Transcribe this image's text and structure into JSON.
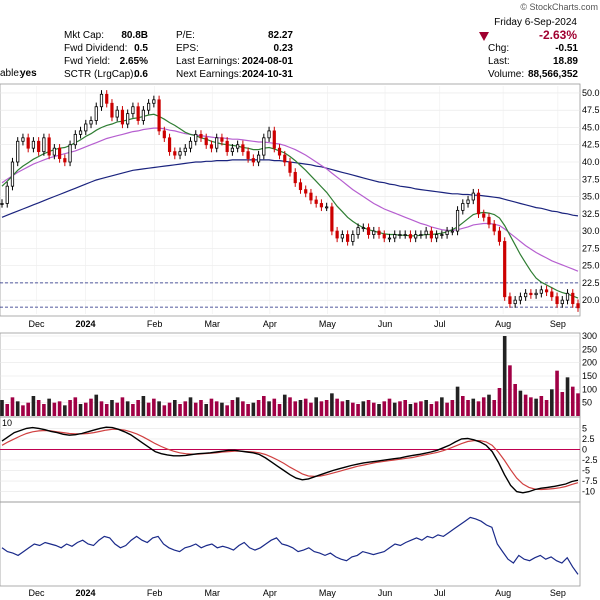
{
  "brand": "© StockCharts.com",
  "header": {
    "date_line": "Friday  6-Sep-2024",
    "change_pct": "-2.63%",
    "left_rows": [
      {
        "label": "Mkt Cap:",
        "value": "80.8B"
      },
      {
        "label": "Fwd Dividend:",
        "value": "0.5"
      },
      {
        "label": "Fwd Yield:",
        "value": "2.65%"
      },
      {
        "label": "SCTR (LrgCap):",
        "value": "0.6"
      }
    ],
    "cut_label": "able:",
    "cut_value": "yes",
    "mid_rows": [
      {
        "label": "P/E:",
        "value": "82.27"
      },
      {
        "label": "EPS:",
        "value": "0.23"
      },
      {
        "label": "Last Earnings:",
        "value": "2024-08-01"
      },
      {
        "label": "Next Earnings:",
        "value": "2024-10-31"
      }
    ],
    "right_rows": [
      {
        "label": "Chg:",
        "value": "-0.51"
      },
      {
        "label": "Last:",
        "value": "18.89"
      },
      {
        "label": "Volume:",
        "value": "88,566,352"
      }
    ]
  },
  "colors": {
    "up": "#000000",
    "down": "#cc0000",
    "sma_short": "#2e7d32",
    "sma_mid": "#b65fd0",
    "sma_long": "#1a237e",
    "volume": "#a00045",
    "macd_line": "#000000",
    "macd_signal": "#d04040",
    "rs_line": "#1a2a8a",
    "hline": "#1a237e",
    "zero": "#c00050",
    "neg_arrow": "#a00030"
  },
  "chart_data": {
    "type": "line",
    "x_labels": [
      "Dec",
      "2024",
      "Feb",
      "Mar",
      "Apr",
      "May",
      "Jun",
      "Jul",
      "Aug",
      "Sep"
    ],
    "x_label_bold": "2024",
    "price_panel": {
      "y_ticks": [
        "50.0",
        "47.5",
        "45.0",
        "42.5",
        "40.0",
        "37.5",
        "35.0",
        "32.5",
        "30.0",
        "27.5",
        "25.0",
        "22.5",
        "20.0"
      ],
      "ylim": [
        18.0,
        51.0
      ],
      "reference_lines": [
        22.5,
        19.0
      ],
      "last_close": 18.89,
      "closes": [
        34.0,
        36.5,
        40.0,
        43.0,
        43.5,
        42.0,
        43.0,
        41.5,
        43.5,
        41.0,
        42.0,
        40.5,
        40.0,
        42.5,
        44.0,
        44.5,
        45.5,
        46.0,
        48.0,
        49.8,
        48.5,
        46.5,
        47.5,
        45.5,
        47.0,
        48.0,
        46.0,
        47.5,
        48.5,
        49.0,
        44.5,
        43.5,
        41.5,
        41.0,
        41.5,
        42.0,
        43.0,
        44.0,
        43.5,
        42.5,
        42.0,
        43.5,
        43.0,
        41.5,
        42.0,
        42.5,
        41.5,
        40.5,
        40.0,
        41.0,
        43.5,
        44.5,
        42.0,
        41.0,
        40.0,
        38.5,
        37.0,
        36.0,
        35.5,
        34.5,
        34.0,
        33.5,
        33.5,
        30.0,
        29.0,
        29.5,
        28.5,
        29.5,
        30.5,
        30.5,
        29.5,
        30.0,
        29.5,
        29.0,
        29.0,
        29.5,
        29.5,
        29.5,
        29.0,
        29.5,
        29.5,
        30.0,
        29.0,
        29.5,
        29.5,
        30.0,
        30.0,
        33.0,
        34.0,
        34.5,
        35.5,
        32.5,
        32.0,
        31.0,
        30.0,
        28.5,
        20.5,
        19.5,
        20.0,
        20.5,
        21.0,
        20.8,
        21.0,
        21.5,
        21.2,
        20.5,
        19.5,
        20.0,
        21.0,
        19.5,
        18.9
      ],
      "sma_short": [
        36.5,
        37.2,
        38.0,
        38.8,
        39.4,
        39.9,
        40.4,
        40.8,
        41.2,
        41.5,
        41.8,
        42.0,
        42.1,
        42.4,
        42.8,
        43.2,
        43.7,
        44.1,
        44.6,
        45.0,
        45.3,
        45.5,
        45.8,
        45.9,
        46.1,
        46.3,
        46.4,
        46.6,
        46.8,
        46.9,
        46.6,
        46.2,
        45.7,
        45.3,
        44.8,
        44.3,
        44.0,
        43.8,
        43.5,
        43.3,
        43.0,
        42.8,
        42.6,
        42.5,
        42.4,
        42.3,
        42.1,
        42.0,
        41.8,
        41.8,
        42.0,
        42.1,
        41.9,
        41.6,
        41.3,
        40.8,
        40.2,
        39.5,
        38.8,
        38.0,
        37.2,
        36.4,
        35.6,
        34.6,
        33.6,
        32.8,
        32.0,
        31.4,
        30.9,
        30.5,
        30.2,
        30.0,
        29.8,
        29.6,
        29.5,
        29.5,
        29.4,
        29.4,
        29.3,
        29.3,
        29.4,
        29.5,
        29.5,
        29.6,
        29.7,
        29.9,
        30.2,
        30.6,
        31.2,
        31.8,
        32.4,
        32.6,
        32.7,
        32.6,
        32.4,
        31.9,
        30.8,
        29.4,
        28.0,
        26.6,
        25.4,
        24.2,
        23.2,
        22.6,
        22.2,
        21.8,
        21.4,
        21.1,
        20.9,
        20.6,
        20.3
      ],
      "sma_mid": [
        37.0,
        37.5,
        38.0,
        38.5,
        38.9,
        39.3,
        39.7,
        40.0,
        40.3,
        40.6,
        40.8,
        41.0,
        41.2,
        41.4,
        41.6,
        41.9,
        42.2,
        42.5,
        42.8,
        43.1,
        43.4,
        43.6,
        43.8,
        44.0,
        44.2,
        44.4,
        44.5,
        44.7,
        44.8,
        44.9,
        44.9,
        44.8,
        44.6,
        44.5,
        44.3,
        44.1,
        44.0,
        43.9,
        43.8,
        43.7,
        43.6,
        43.5,
        43.5,
        43.4,
        43.3,
        43.3,
        43.2,
        43.1,
        43.0,
        42.9,
        42.9,
        42.8,
        42.7,
        42.6,
        42.4,
        42.1,
        41.8,
        41.4,
        41.0,
        40.5,
        40.0,
        39.5,
        39.0,
        38.4,
        37.8,
        37.2,
        36.6,
        36.0,
        35.5,
        35.0,
        34.5,
        34.0,
        33.6,
        33.2,
        32.9,
        32.6,
        32.3,
        32.0,
        31.7,
        31.4,
        31.1,
        30.9,
        30.6,
        30.4,
        30.2,
        30.1,
        30.1,
        30.2,
        30.4,
        30.6,
        30.9,
        31.0,
        31.1,
        31.1,
        31.0,
        30.8,
        30.3,
        29.7,
        29.1,
        28.5,
        27.9,
        27.4,
        26.9,
        26.5,
        26.1,
        25.7,
        25.4,
        25.1,
        24.8,
        24.5,
        24.2
      ],
      "sma_long": [
        32.0,
        32.3,
        32.6,
        32.9,
        33.2,
        33.5,
        33.8,
        34.1,
        34.4,
        34.7,
        35.0,
        35.3,
        35.6,
        35.9,
        36.2,
        36.5,
        36.8,
        37.1,
        37.4,
        37.6,
        37.8,
        38.0,
        38.2,
        38.4,
        38.6,
        38.8,
        38.9,
        39.0,
        39.1,
        39.2,
        39.3,
        39.4,
        39.5,
        39.6,
        39.7,
        39.8,
        39.9,
        40.0,
        40.0,
        40.1,
        40.1,
        40.2,
        40.2,
        40.2,
        40.3,
        40.3,
        40.3,
        40.3,
        40.3,
        40.3,
        40.3,
        40.3,
        40.2,
        40.2,
        40.1,
        40.0,
        39.9,
        39.8,
        39.7,
        39.6,
        39.4,
        39.3,
        39.1,
        38.9,
        38.7,
        38.5,
        38.3,
        38.1,
        37.9,
        37.7,
        37.5,
        37.3,
        37.1,
        37.0,
        36.8,
        36.7,
        36.5,
        36.4,
        36.3,
        36.1,
        36.0,
        35.9,
        35.8,
        35.7,
        35.6,
        35.5,
        35.4,
        35.4,
        35.3,
        35.3,
        35.2,
        35.2,
        35.1,
        35.0,
        34.9,
        34.8,
        34.6,
        34.4,
        34.2,
        34.0,
        33.8,
        33.6,
        33.4,
        33.3,
        33.1,
        32.9,
        32.8,
        32.6,
        32.5,
        32.3,
        32.2
      ]
    },
    "volume_panel": {
      "y_ticks": [
        "300",
        "250",
        "200",
        "150",
        "100",
        "50"
      ],
      "ylim": [
        0,
        300
      ],
      "values": [
        60,
        45,
        70,
        55,
        40,
        50,
        75,
        60,
        45,
        65,
        50,
        55,
        40,
        60,
        70,
        45,
        50,
        65,
        80,
        55,
        45,
        60,
        50,
        70,
        55,
        45,
        60,
        75,
        50,
        65,
        55,
        40,
        50,
        60,
        45,
        55,
        70,
        50,
        60,
        45,
        65,
        55,
        50,
        40,
        60,
        70,
        55,
        45,
        50,
        60,
        75,
        55,
        65,
        45,
        80,
        70,
        55,
        60,
        65,
        50,
        70,
        55,
        60,
        85,
        65,
        55,
        60,
        50,
        45,
        55,
        60,
        50,
        45,
        55,
        65,
        50,
        55,
        60,
        45,
        50,
        55,
        60,
        45,
        55,
        70,
        50,
        60,
        110,
        75,
        60,
        65,
        55,
        70,
        80,
        60,
        105,
        300,
        190,
        120,
        95,
        80,
        70,
        65,
        75,
        60,
        100,
        170,
        90,
        145,
        110,
        85
      ]
    },
    "macd_panel": {
      "y_ticks": [
        "5",
        "2.5",
        "0",
        "-2.5",
        "-5",
        "-7.5",
        "-10"
      ],
      "ylim": [
        -12,
        7
      ],
      "top_label_fragment": "10",
      "macd": [
        2,
        3,
        4,
        4.5,
        5,
        5.2,
        5.0,
        4.7,
        4.3,
        4.0,
        3.6,
        3.4,
        3.5,
        3.8,
        4.2,
        4.6,
        5.0,
        5.3,
        5.2,
        4.8,
        4.2,
        3.5,
        2.5,
        1.5,
        0.5,
        -0.5,
        -1.0,
        -1.3,
        -1.5,
        -1.5,
        -1.4,
        -1.2,
        -1.0,
        -0.9,
        -0.8,
        -0.6,
        -0.4,
        -0.2,
        -0.2,
        -0.4,
        -0.6,
        -0.8,
        -1.2,
        -2.0,
        -3.0,
        -4.0,
        -5.0,
        -6.0,
        -6.8,
        -7.2,
        -7.0,
        -6.5,
        -6.0,
        -5.5,
        -5.0,
        -4.6,
        -4.2,
        -3.8,
        -3.5,
        -3.2,
        -3.0,
        -2.8,
        -2.6,
        -2.4,
        -2.2,
        -2.0,
        -1.7,
        -1.4,
        -1.2,
        -0.9,
        -0.6,
        -0.2,
        0.4,
        1.0,
        1.8,
        2.5,
        2.6,
        2.3,
        1.8,
        1.0,
        -0.5,
        -3.0,
        -6.0,
        -8.5,
        -10.0,
        -10.3,
        -10.0,
        -9.5,
        -9.2,
        -9.0,
        -8.8,
        -8.5,
        -8.2,
        -7.6,
        -7.3
      ],
      "signal": [
        1,
        1.8,
        2.5,
        3.2,
        3.8,
        4.2,
        4.4,
        4.5,
        4.4,
        4.2,
        4.0,
        3.8,
        3.7,
        3.7,
        3.8,
        4.0,
        4.3,
        4.6,
        4.8,
        4.8,
        4.6,
        4.2,
        3.7,
        3.0,
        2.2,
        1.4,
        0.7,
        0.1,
        -0.4,
        -0.8,
        -1.0,
        -1.1,
        -1.1,
        -1.0,
        -0.9,
        -0.8,
        -0.6,
        -0.5,
        -0.4,
        -0.4,
        -0.5,
        -0.6,
        -0.8,
        -1.2,
        -1.8,
        -2.5,
        -3.3,
        -4.2,
        -5.0,
        -5.8,
        -6.3,
        -6.4,
        -6.3,
        -6.0,
        -5.6,
        -5.2,
        -4.8,
        -4.4,
        -4.0,
        -3.7,
        -3.4,
        -3.1,
        -2.9,
        -2.7,
        -2.5,
        -2.3,
        -2.1,
        -1.9,
        -1.6,
        -1.3,
        -1.0,
        -0.7,
        -0.3,
        0.2,
        0.8,
        1.4,
        1.9,
        2.1,
        2.1,
        1.8,
        1.0,
        -0.6,
        -2.6,
        -4.8,
        -6.8,
        -8.2,
        -9.0,
        -9.4,
        -9.5,
        -9.4,
        -9.3,
        -9.1,
        -8.8,
        -8.3,
        -7.9
      ]
    },
    "rs_panel": {
      "values": [
        0.45,
        0.4,
        0.38,
        0.35,
        0.4,
        0.45,
        0.5,
        0.48,
        0.52,
        0.5,
        0.48,
        0.45,
        0.5,
        0.47,
        0.52,
        0.55,
        0.5,
        0.48,
        0.55,
        0.6,
        0.58,
        0.5,
        0.45,
        0.48,
        0.55,
        0.6,
        0.55,
        0.52,
        0.58,
        0.6,
        0.5,
        0.45,
        0.42,
        0.4,
        0.45,
        0.47,
        0.5,
        0.45,
        0.48,
        0.5,
        0.45,
        0.47,
        0.45,
        0.42,
        0.48,
        0.52,
        0.45,
        0.42,
        0.45,
        0.5,
        0.55,
        0.58,
        0.5,
        0.48,
        0.45,
        0.4,
        0.42,
        0.45,
        0.4,
        0.38,
        0.35,
        0.38,
        0.33,
        0.3,
        0.28,
        0.33,
        0.35,
        0.4,
        0.38,
        0.36,
        0.38,
        0.4,
        0.45,
        0.5,
        0.48,
        0.52,
        0.55,
        0.58,
        0.55,
        0.6,
        0.58,
        0.62,
        0.6,
        0.65,
        0.7,
        0.75,
        0.8,
        0.85,
        0.83,
        0.8,
        0.75,
        0.72,
        0.5,
        0.4,
        0.3,
        0.25,
        0.35,
        0.3,
        0.28,
        0.32,
        0.35,
        0.3,
        0.33,
        0.28,
        0.25,
        0.32,
        0.2,
        0.1
      ],
      "ylim": [
        0,
        1
      ]
    }
  }
}
